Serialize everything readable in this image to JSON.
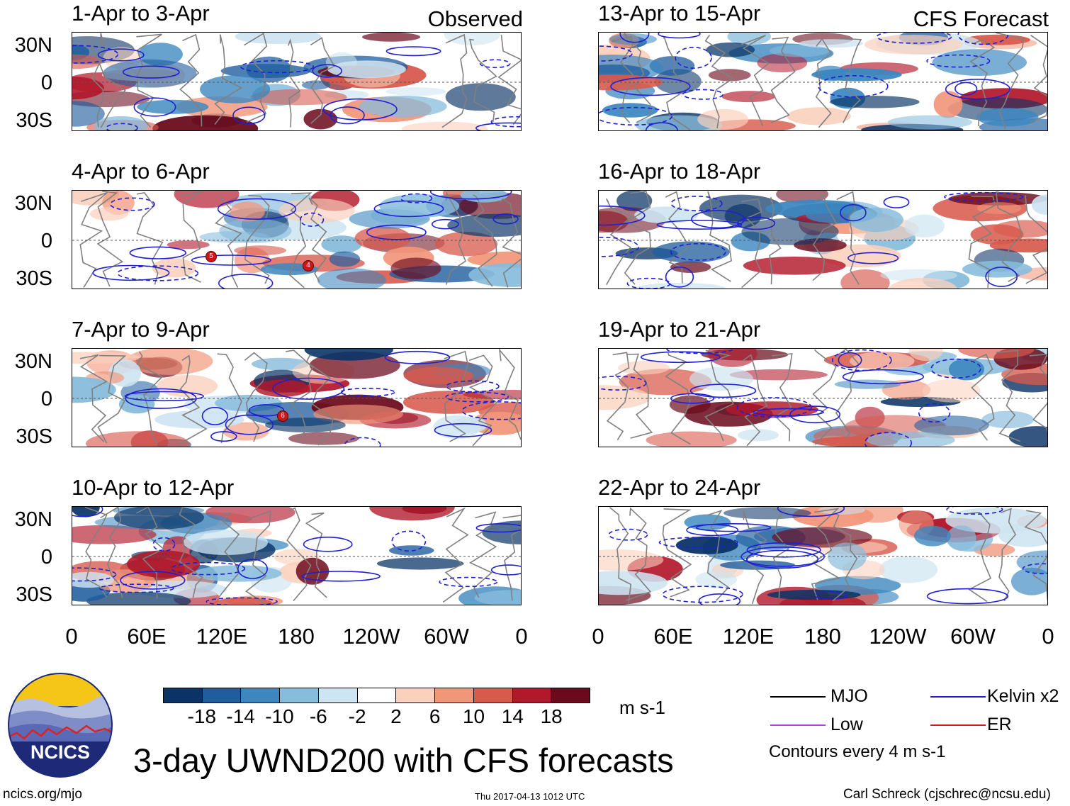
{
  "panels": {
    "observed": [
      {
        "title": "1-Apr to 3-Apr"
      },
      {
        "title": "4-Apr to 6-Apr"
      },
      {
        "title": "7-Apr to 9-Apr"
      },
      {
        "title": "10-Apr to 12-Apr"
      }
    ],
    "forecast": [
      {
        "title": "13-Apr to 15-Apr"
      },
      {
        "title": "16-Apr to 18-Apr"
      },
      {
        "title": "19-Apr to 21-Apr"
      },
      {
        "title": "22-Apr to 24-Apr"
      }
    ]
  },
  "column_labels": {
    "left": "Observed",
    "right": "CFS Forecast"
  },
  "y_axis_labels": [
    "30N",
    "0",
    "30S"
  ],
  "x_axis_labels": [
    "0",
    "60E",
    "120E",
    "180",
    "120W",
    "60W",
    "0"
  ],
  "colorbar": {
    "ticks": [
      "-18",
      "-14",
      "-10",
      "-6",
      "-2",
      "2",
      "6",
      "10",
      "14",
      "18"
    ],
    "colors": [
      "#0b3466",
      "#1f5d9e",
      "#3c87c0",
      "#87bcdc",
      "#cde4f1",
      "#ffffff",
      "#fbd0bc",
      "#f2967a",
      "#d85a4d",
      "#b2182b",
      "#6a0a1c"
    ],
    "units": "m s-1"
  },
  "legend": {
    "items": [
      {
        "label": "MJO",
        "color": "#000000"
      },
      {
        "label": "Kelvin x2",
        "color": "#1f1fd6"
      },
      {
        "label": "Low",
        "color": "#b044d8"
      },
      {
        "label": "ER",
        "color": "#d81818"
      }
    ],
    "contour_note": "Contours every 4 m s-1"
  },
  "title": "3-day UWND200 with CFS forecasts",
  "logo": {
    "text": "NCICS"
  },
  "footer": {
    "url": "ncics.org/mjo",
    "timestamp": "Thu 2017-04-13 1012 UTC",
    "credit": "Carl Schreck (cjschrec@ncsu.edu)"
  },
  "storm_markers": [
    {
      "panel": "observed.1",
      "label": "5"
    },
    {
      "panel": "observed.1",
      "label": "4"
    },
    {
      "panel": "observed.2",
      "label": "6"
    }
  ]
}
